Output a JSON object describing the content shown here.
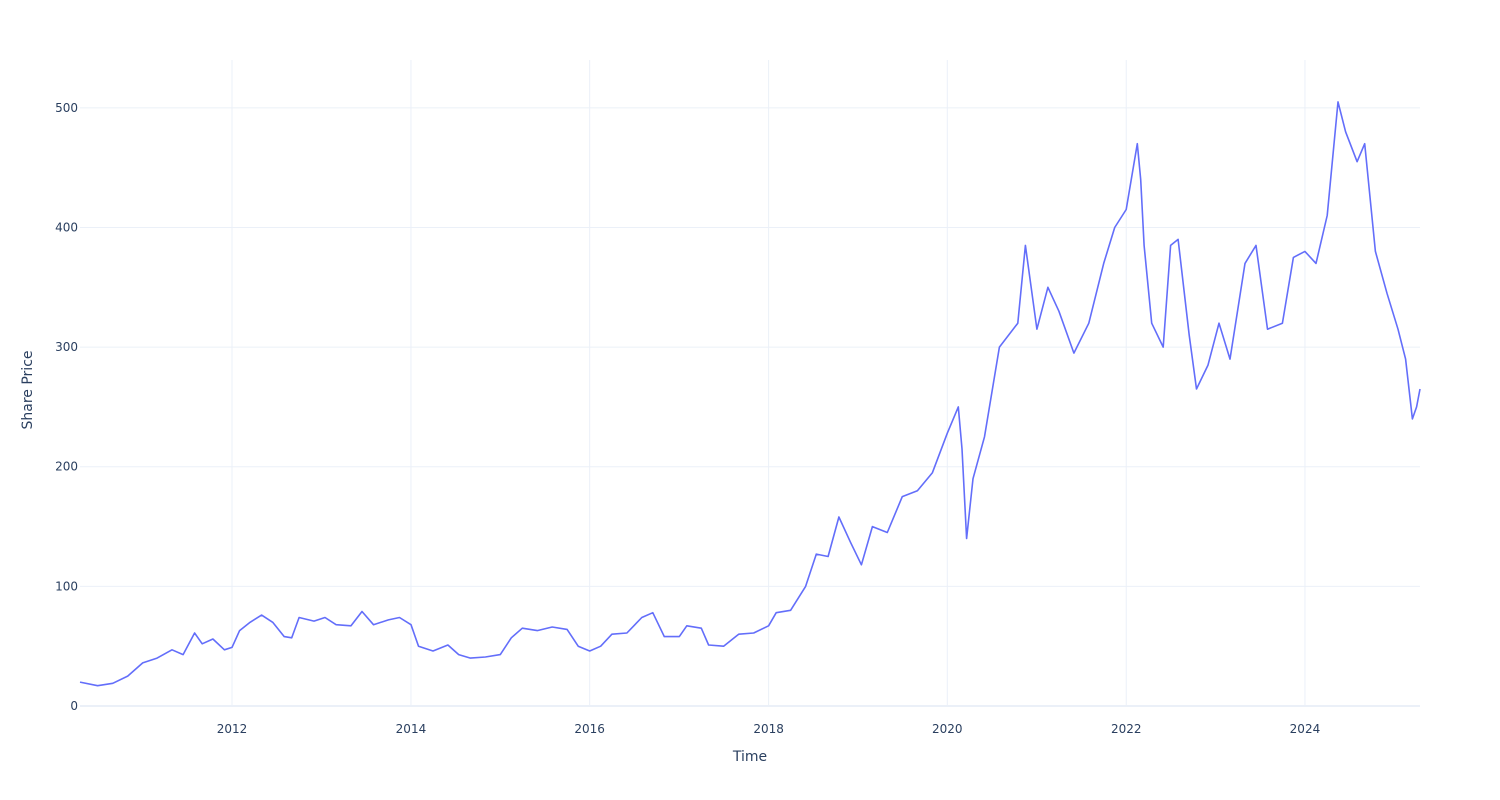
{
  "chart_data": {
    "type": "line",
    "title": "",
    "xlabel": "Time",
    "ylabel": "Share Price",
    "xlim": [
      "2010-04-20",
      "2025-04-15"
    ],
    "ylim": [
      0,
      540
    ],
    "x_ticks": [
      "2012",
      "2014",
      "2016",
      "2018",
      "2020",
      "2022",
      "2024"
    ],
    "y_ticks": [
      "0",
      "100",
      "200",
      "300",
      "400",
      "500"
    ],
    "grid": true,
    "legend": "none",
    "colors": {
      "line": "#636efa",
      "grid": "#ebf0f8",
      "text": "#2a3f5f"
    },
    "series": [
      {
        "points": [
          [
            "2010-04-20",
            20
          ],
          [
            "2010-07-01",
            17
          ],
          [
            "2010-09-01",
            19
          ],
          [
            "2010-11-01",
            25
          ],
          [
            "2011-01-01",
            36
          ],
          [
            "2011-03-01",
            40
          ],
          [
            "2011-05-01",
            47
          ],
          [
            "2011-06-15",
            43
          ],
          [
            "2011-08-01",
            61
          ],
          [
            "2011-09-01",
            52
          ],
          [
            "2011-10-15",
            56
          ],
          [
            "2011-12-01",
            47
          ],
          [
            "2012-01-01",
            49
          ],
          [
            "2012-02-01",
            63
          ],
          [
            "2012-03-15",
            70
          ],
          [
            "2012-05-01",
            76
          ],
          [
            "2012-06-15",
            70
          ],
          [
            "2012-08-01",
            58
          ],
          [
            "2012-09-01",
            57
          ],
          [
            "2012-10-01",
            74
          ],
          [
            "2012-12-01",
            71
          ],
          [
            "2013-01-15",
            74
          ],
          [
            "2013-03-01",
            68
          ],
          [
            "2013-05-01",
            67
          ],
          [
            "2013-06-15",
            79
          ],
          [
            "2013-08-01",
            68
          ],
          [
            "2013-10-01",
            72
          ],
          [
            "2013-11-15",
            74
          ],
          [
            "2014-01-01",
            68
          ],
          [
            "2014-02-01",
            50
          ],
          [
            "2014-04-01",
            46
          ],
          [
            "2014-06-01",
            51
          ],
          [
            "2014-07-15",
            43
          ],
          [
            "2014-09-01",
            40
          ],
          [
            "2014-11-01",
            41
          ],
          [
            "2015-01-01",
            43
          ],
          [
            "2015-02-15",
            57
          ],
          [
            "2015-04-01",
            65
          ],
          [
            "2015-06-01",
            63
          ],
          [
            "2015-08-01",
            66
          ],
          [
            "2015-10-01",
            64
          ],
          [
            "2015-11-15",
            50
          ],
          [
            "2016-01-01",
            46
          ],
          [
            "2016-02-15",
            50
          ],
          [
            "2016-04-01",
            60
          ],
          [
            "2016-06-01",
            61
          ],
          [
            "2016-08-01",
            74
          ],
          [
            "2016-09-15",
            78
          ],
          [
            "2016-11-01",
            58
          ],
          [
            "2017-01-01",
            58
          ],
          [
            "2017-02-01",
            67
          ],
          [
            "2017-04-01",
            65
          ],
          [
            "2017-05-01",
            51
          ],
          [
            "2017-07-01",
            50
          ],
          [
            "2017-09-01",
            60
          ],
          [
            "2017-11-01",
            61
          ],
          [
            "2018-01-01",
            67
          ],
          [
            "2018-02-01",
            78
          ],
          [
            "2018-04-01",
            80
          ],
          [
            "2018-06-01",
            100
          ],
          [
            "2018-07-15",
            127
          ],
          [
            "2018-09-01",
            125
          ],
          [
            "2018-10-15",
            158
          ],
          [
            "2018-12-01",
            137
          ],
          [
            "2019-01-15",
            118
          ],
          [
            "2019-03-01",
            150
          ],
          [
            "2019-05-01",
            145
          ],
          [
            "2019-07-01",
            175
          ],
          [
            "2019-09-01",
            180
          ],
          [
            "2019-11-01",
            195
          ],
          [
            "2020-01-01",
            228
          ],
          [
            "2020-02-15",
            250
          ],
          [
            "2020-03-01",
            215
          ],
          [
            "2020-03-20",
            140
          ],
          [
            "2020-04-15",
            190
          ],
          [
            "2020-06-01",
            225
          ],
          [
            "2020-08-01",
            300
          ],
          [
            "2020-10-15",
            320
          ],
          [
            "2020-11-15",
            385
          ],
          [
            "2021-01-01",
            315
          ],
          [
            "2021-02-15",
            350
          ],
          [
            "2021-04-01",
            330
          ],
          [
            "2021-06-01",
            295
          ],
          [
            "2021-08-01",
            320
          ],
          [
            "2021-10-01",
            370
          ],
          [
            "2021-11-15",
            400
          ],
          [
            "2022-01-01",
            415
          ],
          [
            "2022-02-15",
            470
          ],
          [
            "2022-03-01",
            440
          ],
          [
            "2022-03-15",
            385
          ],
          [
            "2022-04-15",
            320
          ],
          [
            "2022-06-01",
            300
          ],
          [
            "2022-07-01",
            385
          ],
          [
            "2022-08-01",
            390
          ],
          [
            "2022-09-15",
            310
          ],
          [
            "2022-10-15",
            265
          ],
          [
            "2022-12-01",
            285
          ],
          [
            "2023-01-15",
            320
          ],
          [
            "2023-03-01",
            290
          ],
          [
            "2023-05-01",
            370
          ],
          [
            "2023-06-15",
            385
          ],
          [
            "2023-08-01",
            315
          ],
          [
            "2023-10-01",
            320
          ],
          [
            "2023-11-15",
            375
          ],
          [
            "2024-01-01",
            380
          ],
          [
            "2024-02-15",
            370
          ],
          [
            "2024-04-01",
            410
          ],
          [
            "2024-05-15",
            505
          ],
          [
            "2024-06-15",
            480
          ],
          [
            "2024-08-01",
            455
          ],
          [
            "2024-09-01",
            470
          ],
          [
            "2024-10-15",
            380
          ],
          [
            "2024-12-01",
            345
          ],
          [
            "2025-01-15",
            315
          ],
          [
            "2025-02-15",
            290
          ],
          [
            "2025-03-15",
            240
          ],
          [
            "2025-04-01",
            250
          ],
          [
            "2025-04-15",
            265
          ]
        ]
      }
    ]
  }
}
